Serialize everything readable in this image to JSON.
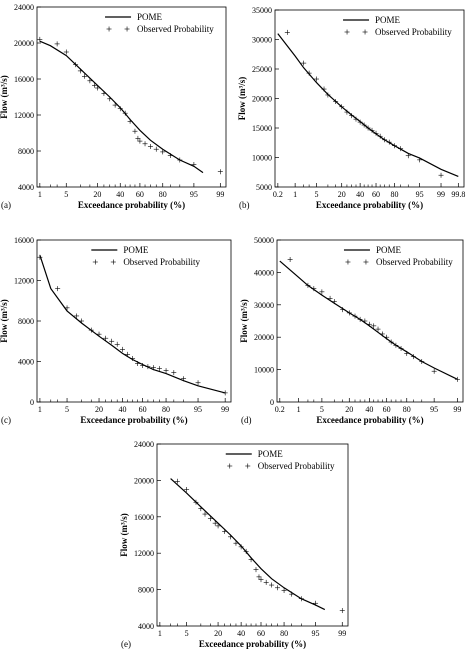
{
  "figure": {
    "colors": {
      "ink": "#000000",
      "background": "#ffffff"
    }
  },
  "chart_data": [
    {
      "panel": "(a)",
      "type": "line",
      "ylabel": "Flow (m³/s)",
      "xlabel": "Exceedance probability (%)",
      "xscale": "normal-probability",
      "xticks": [
        1,
        5,
        20,
        40,
        60,
        80,
        95,
        99
      ],
      "yticks": [
        4000,
        8000,
        12000,
        16000,
        20000,
        24000
      ],
      "ylim": [
        4000,
        24000
      ],
      "legend": [
        "POME",
        "Observed Probability"
      ],
      "legend_position": "top-right",
      "series": [
        {
          "name": "POME",
          "style": "line",
          "x": [
            1,
            2,
            5,
            10,
            20,
            30,
            40,
            50,
            60,
            70,
            80,
            90,
            95,
            97
          ],
          "y": [
            20200,
            19700,
            18600,
            17100,
            15300,
            14000,
            12800,
            11500,
            10300,
            9200,
            8200,
            7000,
            6300,
            5600
          ]
        },
        {
          "name": "Observed Probability",
          "style": "marker",
          "x": [
            1,
            3,
            5,
            8,
            10,
            12,
            15,
            18,
            20,
            25,
            30,
            35,
            40,
            45,
            50,
            55,
            58,
            60,
            65,
            70,
            75,
            80,
            85,
            90,
            95,
            99
          ],
          "y": [
            20400,
            19900,
            19000,
            17600,
            16900,
            16300,
            15800,
            15300,
            15000,
            14400,
            13800,
            13100,
            12700,
            12200,
            11300,
            10200,
            9400,
            9100,
            8800,
            8500,
            8200,
            7900,
            7500,
            7000,
            6500,
            5700
          ]
        }
      ]
    },
    {
      "panel": "(b)",
      "type": "line",
      "ylabel": "Flow (m³/s)",
      "xlabel": "Exceedance probability (%)",
      "xscale": "normal-probability",
      "xticks": [
        0.2,
        1,
        5,
        20,
        40,
        60,
        80,
        95,
        99,
        99.8
      ],
      "yticks": [
        5000,
        10000,
        15000,
        20000,
        25000,
        30000,
        35000
      ],
      "ylim": [
        5000,
        35000
      ],
      "legend": [
        "POME",
        "Observed Probability"
      ],
      "legend_position": "top-right",
      "series": [
        {
          "name": "POME",
          "style": "line",
          "x": [
            0.2,
            1,
            2,
            5,
            10,
            20,
            30,
            40,
            50,
            60,
            70,
            80,
            90,
            95,
            99,
            99.8
          ],
          "y": [
            31000,
            27200,
            25200,
            22700,
            20700,
            18600,
            17200,
            16100,
            15000,
            14000,
            13000,
            12000,
            10700,
            9900,
            8000,
            6800
          ]
        },
        {
          "name": "Observed Probability",
          "style": "marker",
          "x": [
            0.5,
            2,
            3,
            5,
            8,
            10,
            15,
            20,
            25,
            30,
            35,
            40,
            45,
            50,
            55,
            60,
            65,
            70,
            75,
            80,
            85,
            90,
            95,
            99
          ],
          "y": [
            31200,
            26000,
            24300,
            23300,
            21600,
            20600,
            19500,
            18600,
            17700,
            17100,
            16500,
            16000,
            15500,
            15000,
            14600,
            14100,
            13600,
            13000,
            12600,
            12000,
            11500,
            10300,
            9600,
            7000
          ]
        }
      ]
    },
    {
      "panel": "(c)",
      "type": "line",
      "ylabel": "Flow (m³/s)",
      "xlabel": "Exceedance probability (%)",
      "xscale": "normal-probability",
      "xticks": [
        1,
        5,
        20,
        40,
        60,
        80,
        95,
        99
      ],
      "yticks": [
        0,
        4000,
        8000,
        12000,
        16000
      ],
      "ylim": [
        0,
        16000
      ],
      "legend": [
        "POME",
        "Observed Probability"
      ],
      "legend_position": "top-center",
      "series": [
        {
          "name": "POME",
          "style": "line",
          "x": [
            1,
            2,
            5,
            10,
            20,
            30,
            40,
            50,
            60,
            70,
            80,
            90,
            95,
            99
          ],
          "y": [
            14500,
            11200,
            9000,
            7800,
            6500,
            5600,
            4800,
            4200,
            3700,
            3200,
            2800,
            2100,
            1600,
            900
          ]
        },
        {
          "name": "Observed Probability",
          "style": "marker",
          "x": [
            1,
            3,
            5,
            8,
            10,
            15,
            20,
            25,
            30,
            35,
            40,
            45,
            50,
            55,
            60,
            65,
            70,
            75,
            80,
            85,
            90,
            95,
            99
          ],
          "y": [
            14300,
            11200,
            9300,
            8500,
            8000,
            7100,
            6700,
            6300,
            6000,
            5700,
            5200,
            4700,
            4300,
            3800,
            3600,
            3500,
            3400,
            3300,
            3100,
            2900,
            2300,
            1900,
            900
          ]
        }
      ]
    },
    {
      "panel": "(d)",
      "type": "line",
      "ylabel": "Flow (m³/s)",
      "xlabel": "Exceedance probability (%)",
      "xscale": "normal-probability",
      "xticks": [
        0.2,
        1,
        5,
        20,
        40,
        60,
        80,
        95,
        99
      ],
      "yticks": [
        0,
        10000,
        20000,
        30000,
        40000,
        50000
      ],
      "ylim": [
        0,
        50000
      ],
      "legend": [
        "POME",
        "Observed Probability"
      ],
      "legend_position": "top-right",
      "series": [
        {
          "name": "POME",
          "style": "line",
          "x": [
            0.2,
            1,
            2,
            5,
            10,
            20,
            30,
            40,
            50,
            60,
            70,
            80,
            90,
            95,
            99
          ],
          "y": [
            43500,
            38500,
            36000,
            33000,
            30500,
            27500,
            25500,
            23500,
            21500,
            19500,
            17500,
            15500,
            12500,
            10500,
            7000
          ]
        },
        {
          "name": "Observed Probability",
          "style": "marker",
          "x": [
            0.5,
            2,
            3,
            5,
            8,
            10,
            15,
            20,
            25,
            30,
            35,
            40,
            45,
            50,
            55,
            60,
            65,
            70,
            75,
            80,
            85,
            90,
            95,
            99
          ],
          "y": [
            44000,
            36000,
            35000,
            34000,
            32000,
            31000,
            28500,
            27500,
            26500,
            25500,
            25000,
            24000,
            23500,
            22500,
            21000,
            20000,
            18500,
            17500,
            16500,
            15000,
            14000,
            12500,
            9500,
            7000
          ]
        }
      ]
    },
    {
      "panel": "(e)",
      "type": "line",
      "ylabel": "Flow (m³/s)",
      "xlabel": "Exceedance probability (%)",
      "xscale": "normal-probability",
      "xticks": [
        1,
        5,
        20,
        40,
        60,
        80,
        95,
        99
      ],
      "yticks": [
        4000,
        8000,
        12000,
        16000,
        20000,
        24000
      ],
      "ylim": [
        4000,
        24000
      ],
      "legend": [
        "POME",
        "Observed Probability"
      ],
      "legend_position": "top-right",
      "series": [
        {
          "name": "POME",
          "style": "line",
          "x": [
            2,
            5,
            10,
            20,
            30,
            40,
            50,
            60,
            70,
            80,
            90,
            95,
            97
          ],
          "y": [
            20200,
            18600,
            17100,
            15300,
            14000,
            12800,
            11500,
            10300,
            9200,
            8200,
            7000,
            6300,
            5800
          ]
        },
        {
          "name": "Observed Probability",
          "style": "marker",
          "x": [
            3,
            5,
            8,
            10,
            12,
            15,
            18,
            20,
            25,
            30,
            35,
            40,
            45,
            50,
            55,
            58,
            60,
            65,
            70,
            75,
            80,
            85,
            90,
            95,
            99
          ],
          "y": [
            19900,
            19000,
            17600,
            16900,
            16300,
            15800,
            15300,
            15000,
            14400,
            13800,
            13100,
            12700,
            12200,
            11300,
            10200,
            9400,
            9100,
            8800,
            8500,
            8200,
            7900,
            7500,
            7000,
            6500,
            5700
          ]
        }
      ]
    }
  ]
}
